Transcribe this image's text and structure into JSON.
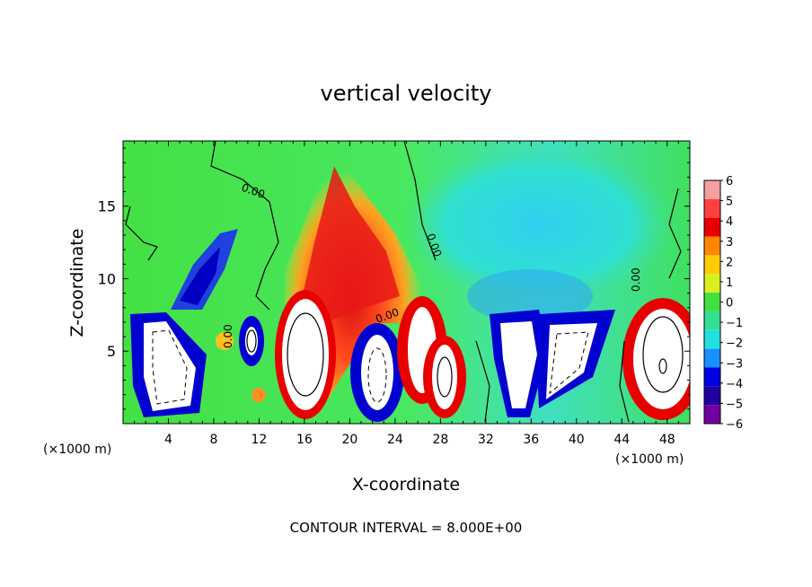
{
  "chart_data": {
    "type": "heatmap",
    "title": "vertical velocity",
    "xlabel": "X-coordinate",
    "ylabel": "Z-coordinate",
    "x_unit": "(×1000 m)",
    "x_unit_right": "(×1000 m)",
    "xlim": [
      0,
      50
    ],
    "ylim": [
      0,
      19.5
    ],
    "x_ticks": [
      "4",
      "8",
      "12",
      "16",
      "20",
      "24",
      "28",
      "32",
      "36",
      "40",
      "44",
      "48"
    ],
    "y_ticks": [
      "5",
      "10",
      "15"
    ],
    "colorbar": {
      "labels": [
        "6",
        "5",
        "4",
        "3",
        "2",
        "1",
        "0",
        "−1",
        "−2",
        "−3",
        "−4",
        "−5",
        "−6"
      ],
      "colors": [
        "#f4a0a0",
        "#ff4040",
        "#e80000",
        "#ff8800",
        "#ffcc00",
        "#d8f020",
        "#40e040",
        "#30e090",
        "#20e0e0",
        "#1890ff",
        "#0000e0",
        "#2000a0",
        "#7000a0"
      ]
    },
    "contour_labels": [
      "0.00",
      "0.00",
      "0.00",
      "0.00",
      "0.00"
    ],
    "footer": "CONTOUR INTERVAL = 8.000E+00"
  }
}
